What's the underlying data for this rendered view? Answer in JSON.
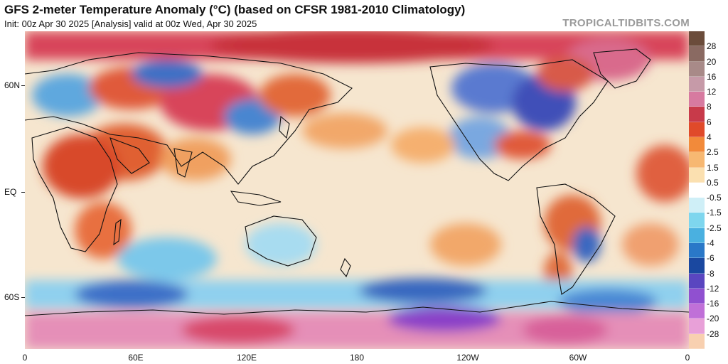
{
  "header": {
    "title": "GFS 2-meter Temperature Anomaly (°C) (based on CFSR 1981-2010 Climatology)",
    "subtitle": "Init: 00z Apr 30 2025   [Analysis]   valid at 00z Wed, Apr 30 2025",
    "brand": "TROPICALTIDBITS.COM"
  },
  "map": {
    "y_ticks": [
      "60N",
      "EQ",
      "60S"
    ],
    "x_ticks": [
      "0",
      "60E",
      "120E",
      "180",
      "120W",
      "60W",
      "0"
    ]
  },
  "colorbar": {
    "labels": [
      "28",
      "20",
      "16",
      "12",
      "8",
      "6",
      "4",
      "2.5",
      "1.5",
      "0.5",
      "-0.5",
      "-1.5",
      "-2.5",
      "-4",
      "-6",
      "-8",
      "-12",
      "-16",
      "-20",
      "-28"
    ],
    "colors": [
      "#6b4c3b",
      "#8a6a62",
      "#a88a88",
      "#c69aa8",
      "#d77aa0",
      "#c83a4a",
      "#e04a2a",
      "#f28a3a",
      "#f7b872",
      "#fbe0b0",
      "#ffffff",
      "#cfeff7",
      "#7ed6ee",
      "#4ab0e0",
      "#2a78c8",
      "#1a48a0",
      "#5a46c0",
      "#9050d0",
      "#c070d8",
      "#e8a0d8",
      "#f8d0b0"
    ]
  }
}
